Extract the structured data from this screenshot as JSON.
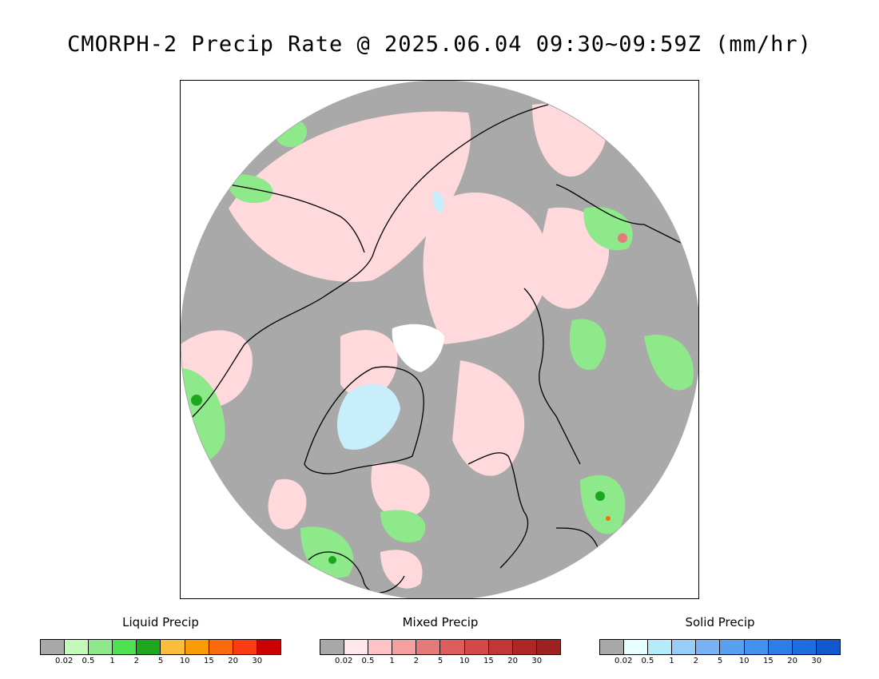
{
  "title": "CMORPH-2 Precip Rate @ 2025.06.04 09:30~09:59Z (mm/hr)",
  "map": {
    "projection": "north-polar-stereographic",
    "background_color": "#a9a9a9",
    "outline_color": "#000000"
  },
  "tick_labels": [
    "0.02",
    "0.5",
    "1",
    "2",
    "5",
    "10",
    "15",
    "20",
    "30"
  ],
  "legends": [
    {
      "id": "liquid",
      "title": "Liquid Precip",
      "colors": [
        "#a9a9a9",
        "#c3f9b9",
        "#8ee98a",
        "#4ee14f",
        "#1ea61e",
        "#fbbd3c",
        "#fb9c06",
        "#fb6a0c",
        "#fb3c12",
        "#cc0000"
      ]
    },
    {
      "id": "mixed",
      "title": "Mixed Precip",
      "colors": [
        "#a9a9a9",
        "#ffe7ea",
        "#ffc3c6",
        "#f4a0a0",
        "#e67a7a",
        "#dd5c5c",
        "#d44848",
        "#c33636",
        "#b02626",
        "#9e2222"
      ]
    },
    {
      "id": "solid",
      "title": "Solid Precip",
      "colors": [
        "#a9a9a9",
        "#e6ffff",
        "#b4ecfa",
        "#98cdf7",
        "#78b4f5",
        "#5aa0f0",
        "#4292ef",
        "#2e7ee8",
        "#1d6ce0",
        "#1158cf"
      ]
    }
  ]
}
